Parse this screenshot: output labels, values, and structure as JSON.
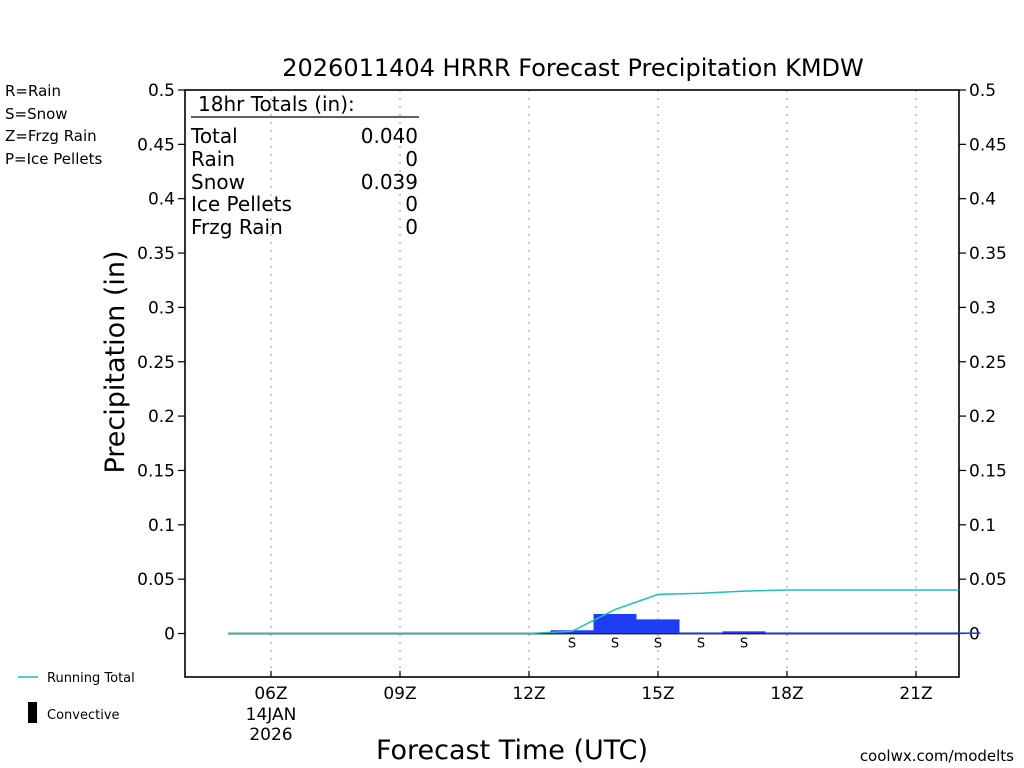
{
  "chart_data": {
    "type": "bar",
    "title": "2026011404 HRRR Forecast Precipitation KMDW",
    "xlabel": "Forecast Time (UTC)",
    "ylabel": "Precipitation (in)",
    "ylim": [
      -0.04,
      0.5
    ],
    "yticks": [
      "0.5",
      "0.45",
      "0.4",
      "0.35",
      "0.3",
      "0.25",
      "0.2",
      "0.15",
      "0.1",
      "0.05",
      "0"
    ],
    "xrange_hours": [
      4.0,
      22.0
    ],
    "xticks": [
      {
        "hour": 6,
        "label": "06Z",
        "date": "14JAN",
        "year": "2026"
      },
      {
        "hour": 9,
        "label": "09Z"
      },
      {
        "hour": 12,
        "label": "12Z"
      },
      {
        "hour": 15,
        "label": "15Z"
      },
      {
        "hour": 18,
        "label": "18Z"
      },
      {
        "hour": 21,
        "label": "21Z"
      }
    ],
    "hours": [
      5,
      6,
      7,
      8,
      9,
      10,
      11,
      12,
      13,
      14,
      15,
      16,
      17,
      18,
      19,
      20,
      21,
      22
    ],
    "hourly_precip": [
      0,
      0,
      0,
      0,
      0,
      0,
      0,
      0,
      0.003,
      0.018,
      0.013,
      0.001,
      0.002,
      0.001,
      0.001,
      0.001,
      0.001,
      0.001
    ],
    "running_total": [
      0,
      0,
      0,
      0,
      0,
      0,
      0,
      0,
      0.002,
      0.022,
      0.036,
      0.037,
      0.039,
      0.04,
      0.04,
      0.04,
      0.04,
      0.04
    ],
    "bar_color": "#1f3df5",
    "running_total_color": "#1fbfbf",
    "ptype_markers": [
      {
        "hour": 13,
        "label": "S"
      },
      {
        "hour": 14,
        "label": "S"
      },
      {
        "hour": 15,
        "label": "S"
      },
      {
        "hour": 16,
        "label": "S"
      },
      {
        "hour": 17,
        "label": "S"
      }
    ],
    "totals_box": {
      "heading": "18hr Totals (in):",
      "rows": [
        {
          "label": "Total",
          "value": "0.040"
        },
        {
          "label": "Rain",
          "value": "0"
        },
        {
          "label": "Snow",
          "value": "0.039"
        },
        {
          "label": "Ice Pellets",
          "value": "0"
        },
        {
          "label": "Frzg Rain",
          "value": "0"
        }
      ]
    }
  },
  "ptype_legend": [
    {
      "label": "R=Rain",
      "color": "#19e619"
    },
    {
      "label": "S=Snow",
      "color": "#3c50f0"
    },
    {
      "label": "Z=Frzg Rain",
      "color": "#f5963c"
    },
    {
      "label": "P=Ice Pellets",
      "color": "#f0308c"
    }
  ],
  "series_legend": {
    "running_total": "Running Total",
    "convective": "Convective"
  },
  "credit": "coolwx.com/modelts",
  "credit_color": "#e01e3c"
}
